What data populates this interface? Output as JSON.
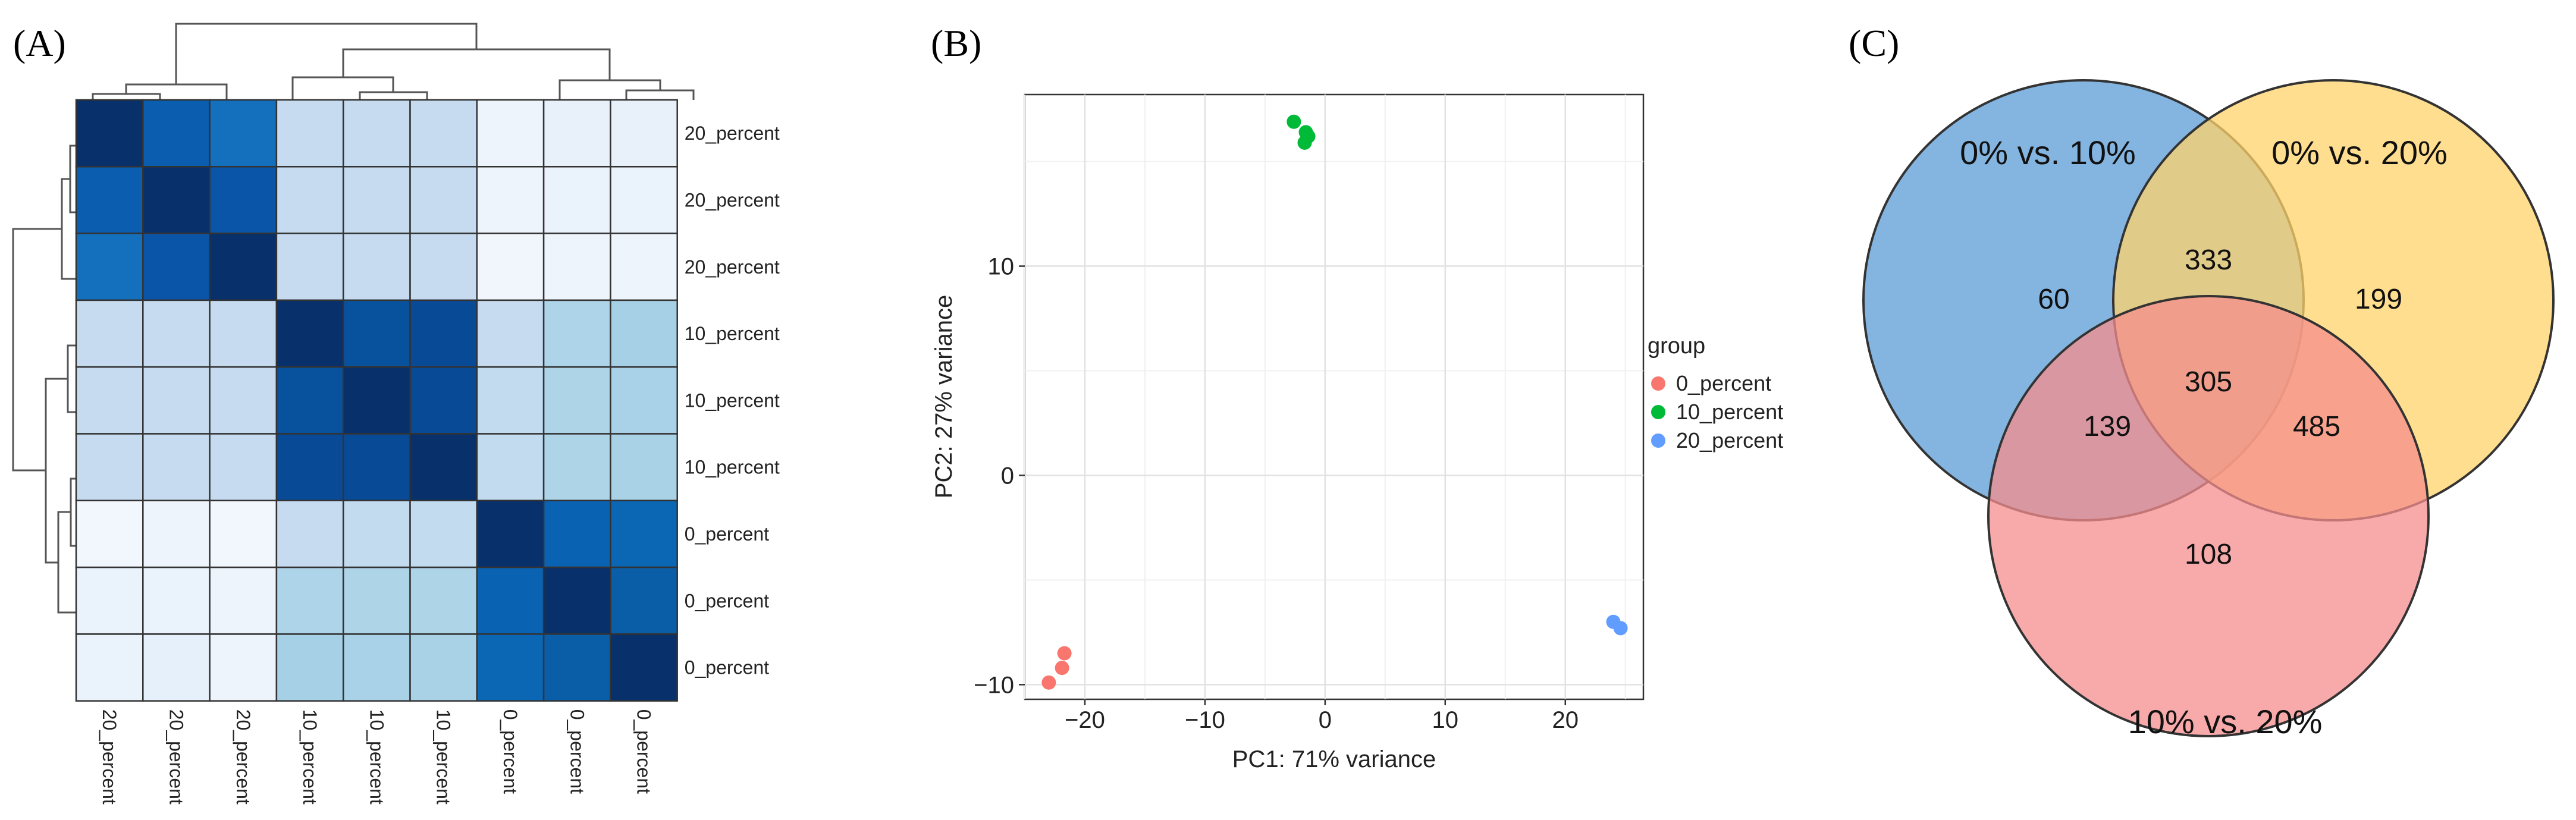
{
  "panel_labels": [
    "(A)",
    "(B)",
    "(C)"
  ],
  "chart_data": [
    {
      "type": "heatmap",
      "title": "",
      "rows": [
        "20_percent",
        "20_percent",
        "20_percent",
        "10_percent",
        "10_percent",
        "10_percent",
        "0_percent",
        "0_percent",
        "0_percent"
      ],
      "columns": [
        "20_percent",
        "20_percent",
        "20_percent",
        "10_percent",
        "10_percent",
        "10_percent",
        "0_percent",
        "0_percent",
        "0_percent"
      ],
      "colors": [
        [
          "#08306b",
          "#0b5db0",
          "#1470bc",
          "#c6dbef",
          "#c6dbef",
          "#c6dbef",
          "#eef4fb",
          "#e8f1fa",
          "#e8f1fa"
        ],
        [
          "#0b5db0",
          "#08306b",
          "#0a55a8",
          "#c6dbef",
          "#c6dbef",
          "#c6dbef",
          "#eef4fb",
          "#eaf2fb",
          "#eaf2fb"
        ],
        [
          "#1470bc",
          "#0a55a8",
          "#08306b",
          "#c6dbef",
          "#c6dbef",
          "#c6dbef",
          "#f0f6fc",
          "#eef4fb",
          "#eef4fb"
        ],
        [
          "#c6dbef",
          "#c6dbef",
          "#c6dbef",
          "#08306b",
          "#08519c",
          "#084a96",
          "#c6dbef",
          "#add4e8",
          "#a6d0e6"
        ],
        [
          "#c6dbef",
          "#c6dbef",
          "#c6dbef",
          "#08519c",
          "#08306b",
          "#084a96",
          "#c2dbef",
          "#aed4e8",
          "#a9d1e7"
        ],
        [
          "#c6dbef",
          "#c6dbef",
          "#c6dbef",
          "#084a96",
          "#084a96",
          "#08306b",
          "#c2dbef",
          "#aed4e8",
          "#aad2e7"
        ],
        [
          "#f1f7fd",
          "#eef4fb",
          "#f1f7fd",
          "#c6dbef",
          "#c2dbef",
          "#c2dbef",
          "#08306b",
          "#0a63b2",
          "#0b66b4"
        ],
        [
          "#eaf2fb",
          "#eaf2fb",
          "#eef4fb",
          "#add4e8",
          "#aed4e8",
          "#aed4e8",
          "#0a63b2",
          "#08306b",
          "#0a5ea8"
        ],
        [
          "#eaf2fb",
          "#e6f0fa",
          "#eef4fb",
          "#a6d0e6",
          "#a9d1e7",
          "#aad2e7",
          "#0b66b4",
          "#0a5ea8",
          "#08306b"
        ]
      ]
    },
    {
      "type": "scatter",
      "title": "",
      "xlabel": "PC1: 71% variance",
      "ylabel": "PC2: 27% variance",
      "xlim": [
        -25,
        26.5
      ],
      "ylim": [
        -10.7,
        18.2
      ],
      "xticks": [
        -20,
        -10,
        0,
        10,
        20
      ],
      "xtick_labels": [
        "−20",
        "−10",
        "0",
        "10",
        "20"
      ],
      "yticks": [
        -10,
        0,
        10
      ],
      "ytick_labels": [
        "−10",
        "0",
        "10"
      ],
      "grid": true,
      "legend_title": "group",
      "series": [
        {
          "name": "0_percent",
          "color": "#f8766d",
          "points": [
            [
              -23.0,
              -9.9
            ],
            [
              -21.9,
              -9.2
            ],
            [
              -21.7,
              -8.5
            ]
          ]
        },
        {
          "name": "10_percent",
          "color": "#00ba38",
          "points": [
            [
              -2.6,
              16.9
            ],
            [
              -1.6,
              16.4
            ],
            [
              -1.4,
              16.2
            ],
            [
              -1.7,
              15.9
            ]
          ]
        },
        {
          "name": "20_percent",
          "color": "#619cff",
          "points": [
            [
              24.0,
              -7.0
            ],
            [
              24.6,
              -7.3
            ]
          ]
        }
      ]
    },
    {
      "type": "venn",
      "sets": [
        {
          "label": "0% vs. 10%",
          "color": "#5b9bd5"
        },
        {
          "label": "0% vs. 20%",
          "color": "#ffd36b"
        },
        {
          "label": "10% vs. 20%",
          "color": "#f58d8d"
        }
      ],
      "regions": {
        "only_a": "60",
        "only_b": "199",
        "only_c": "108",
        "a_b": "333",
        "a_c": "139",
        "b_c": "485",
        "a_b_c": "305"
      }
    }
  ]
}
